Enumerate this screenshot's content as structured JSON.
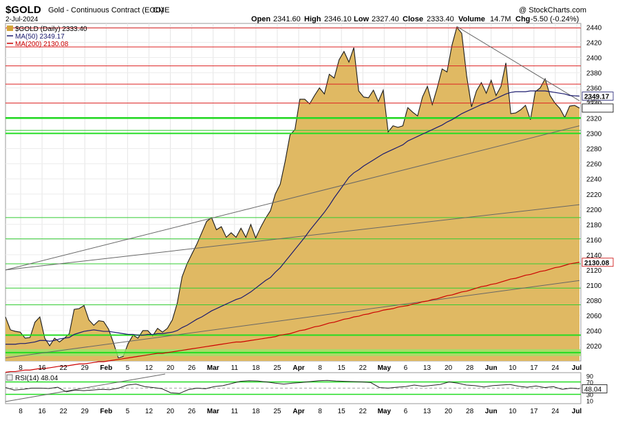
{
  "header": {
    "symbol": "$GOLD",
    "name": "Gold - Continuous Contract (EOD)",
    "exchange": "CME",
    "date": "2-Jul-2024",
    "copyright": "@ StockCharts.com",
    "open_label": "Open",
    "open": "2341.60",
    "high_label": "High",
    "high": "2346.10",
    "low_label": "Low",
    "low": "2327.40",
    "close_label": "Close",
    "close": "2333.40",
    "volume_label": "Volume",
    "volume": "14.7M",
    "chg_label": "Chg",
    "chg": "-5.50 (-0.24%)"
  },
  "legend": [
    {
      "label": "$GOLD (Daily) 2333.40",
      "color": "#d4a53a"
    },
    {
      "label": "MA(50) 2349.17",
      "color": "#1a1a6e"
    },
    {
      "label": "MA(200) 2130.08",
      "color": "#cc0000"
    }
  ],
  "price_labels": {
    "ma50": "2349.17",
    "close": "2333.40",
    "ma200": "2130.08",
    "overlap": "2340"
  },
  "rsi": {
    "label": "RSI(14) 48.04",
    "value_label": "48.04",
    "ticks": [
      "90",
      "70",
      "30",
      "10"
    ],
    "ylim": [
      0,
      100
    ],
    "values": [
      52,
      44,
      46,
      50,
      50,
      49,
      53,
      38,
      44,
      42,
      44,
      46,
      45,
      50,
      60,
      63,
      55,
      52,
      48,
      35,
      33,
      45,
      50,
      48,
      55,
      58,
      65,
      72,
      74,
      73,
      70,
      66,
      63,
      66,
      68,
      71,
      74,
      75,
      73,
      72,
      71,
      70,
      68,
      52,
      50,
      53,
      55,
      60,
      56,
      59,
      62,
      70,
      66,
      60,
      58,
      54,
      58,
      60,
      62,
      56,
      53,
      57,
      52,
      55,
      46,
      50,
      48
    ]
  },
  "chart_data": {
    "type": "area",
    "title": "$GOLD Gold - Continuous Contract (EOD) CME",
    "ylim": [
      2000,
      2445
    ],
    "yticks": [
      2020,
      2040,
      2060,
      2080,
      2100,
      2120,
      2140,
      2160,
      2180,
      2200,
      2220,
      2240,
      2260,
      2280,
      2300,
      2320,
      2340,
      2360,
      2380,
      2400,
      2420,
      2440
    ],
    "xticks": [
      "8",
      "16",
      "22",
      "29",
      "Feb",
      "5",
      "12",
      "20",
      "26",
      "Mar",
      "11",
      "18",
      "25",
      "Apr",
      "8",
      "15",
      "22",
      "May",
      "6",
      "13",
      "20",
      "28",
      "Jun",
      "10",
      "17",
      "24",
      "Jul"
    ],
    "series": [
      {
        "name": "$GOLD (Daily)",
        "color": "#d4a53a",
        "values": [
          2058,
          2041,
          2039,
          2038,
          2030,
          2031,
          2051,
          2058,
          2030,
          2020,
          2030,
          2025,
          2030,
          2036,
          2068,
          2069,
          2073,
          2054,
          2047,
          2053,
          2052,
          2042,
          2024,
          2004,
          2006,
          2023,
          2034,
          2030,
          2040,
          2040,
          2033,
          2043,
          2038,
          2043,
          2054,
          2076,
          2111,
          2128,
          2141,
          2154,
          2169,
          2184,
          2189,
          2173,
          2177,
          2163,
          2169,
          2163,
          2175,
          2163,
          2180,
          2162,
          2176,
          2188,
          2198,
          2220,
          2233,
          2263,
          2298,
          2305,
          2345,
          2345,
          2339,
          2350,
          2360,
          2352,
          2378,
          2373,
          2397,
          2408,
          2394,
          2413,
          2356,
          2348,
          2347,
          2357,
          2342,
          2357,
          2302,
          2310,
          2308,
          2310,
          2334,
          2328,
          2323,
          2348,
          2362,
          2338,
          2360,
          2385,
          2381,
          2416,
          2440,
          2432,
          2376,
          2335,
          2356,
          2367,
          2353,
          2370,
          2350,
          2362,
          2393,
          2326,
          2327,
          2331,
          2337,
          2318,
          2355,
          2360,
          2372,
          2350,
          2340,
          2333,
          2321,
          2336,
          2337,
          2333.4
        ]
      },
      {
        "name": "MA(50)",
        "color": "#1a1a6e",
        "values": [
          2022,
          2022,
          2022,
          2023,
          2023,
          2024,
          2025,
          2027,
          2027,
          2026,
          2027,
          2029,
          2030,
          2031,
          2035,
          2037,
          2039,
          2040,
          2041,
          2040,
          2039,
          2039,
          2038,
          2037,
          2036,
          2035,
          2035,
          2034,
          2034,
          2035,
          2035,
          2036,
          2036,
          2037,
          2038,
          2040,
          2044,
          2047,
          2051,
          2055,
          2058,
          2062,
          2066,
          2069,
          2072,
          2075,
          2078,
          2081,
          2083,
          2087,
          2091,
          2096,
          2101,
          2106,
          2110,
          2117,
          2123,
          2131,
          2139,
          2147,
          2155,
          2163,
          2172,
          2180,
          2188,
          2196,
          2205,
          2215,
          2224,
          2233,
          2242,
          2248,
          2252,
          2257,
          2261,
          2265,
          2269,
          2273,
          2276,
          2279,
          2282,
          2285,
          2290,
          2293,
          2296,
          2299,
          2302,
          2305,
          2308,
          2311,
          2315,
          2318,
          2322,
          2326,
          2329,
          2332,
          2335,
          2338,
          2340,
          2343,
          2346,
          2349,
          2352,
          2354,
          2355,
          2355,
          2355,
          2356,
          2356,
          2356,
          2356,
          2355,
          2354,
          2353,
          2352,
          2350,
          2349.5,
          2349.17
        ]
      },
      {
        "name": "MA(200)",
        "color": "#cc0000",
        "values": [
          1985,
          1986,
          1986,
          1987,
          1988,
          1988,
          1989,
          1990,
          1990,
          1991,
          1992,
          1993,
          1993,
          1994,
          1995,
          1996,
          1996,
          1997,
          1998,
          1999,
          1999,
          2000,
          2001,
          2002,
          2003,
          2004,
          2005,
          2006,
          2007,
          2008,
          2009,
          2010,
          2010,
          2011,
          2012,
          2013,
          2014,
          2015,
          2016,
          2017,
          2018,
          2019,
          2020,
          2021,
          2022,
          2023,
          2024,
          2025,
          2025,
          2026,
          2027,
          2028,
          2029,
          2030,
          2031,
          2032,
          2034,
          2035,
          2036,
          2038,
          2040,
          2041,
          2043,
          2045,
          2046,
          2048,
          2050,
          2051,
          2053,
          2055,
          2056,
          2058,
          2059,
          2061,
          2062,
          2064,
          2065,
          2067,
          2068,
          2069,
          2071,
          2072,
          2073,
          2075,
          2076,
          2078,
          2079,
          2081,
          2082,
          2084,
          2086,
          2087,
          2089,
          2091,
          2092,
          2094,
          2096,
          2098,
          2099,
          2101,
          2102,
          2104,
          2106,
          2108,
          2109,
          2111,
          2113,
          2114,
          2116,
          2118,
          2119,
          2121,
          2123,
          2124,
          2126,
          2128,
          2129,
          2130.08
        ]
      }
    ],
    "hlines_red": [
      2340,
      2365,
      2389,
      2414,
      2439
    ],
    "hlines_green": [
      2074,
      2096,
      2128,
      2161,
      2189,
      2304,
      2321
    ],
    "hlines_green_bold": [
      2034,
      2011,
      2300,
      2320
    ],
    "trendlines": [
      {
        "from": [
          0,
          2120
        ],
        "to": [
          117,
          2206
        ]
      },
      {
        "from": [
          0,
          2004
        ],
        "to": [
          117,
          2106
        ]
      },
      {
        "from": [
          0,
          2120
        ],
        "to": [
          117,
          2310
        ]
      },
      {
        "from": [
          92,
          2441
        ],
        "to": [
          117,
          2343
        ]
      }
    ],
    "legend_position": "top-left"
  }
}
